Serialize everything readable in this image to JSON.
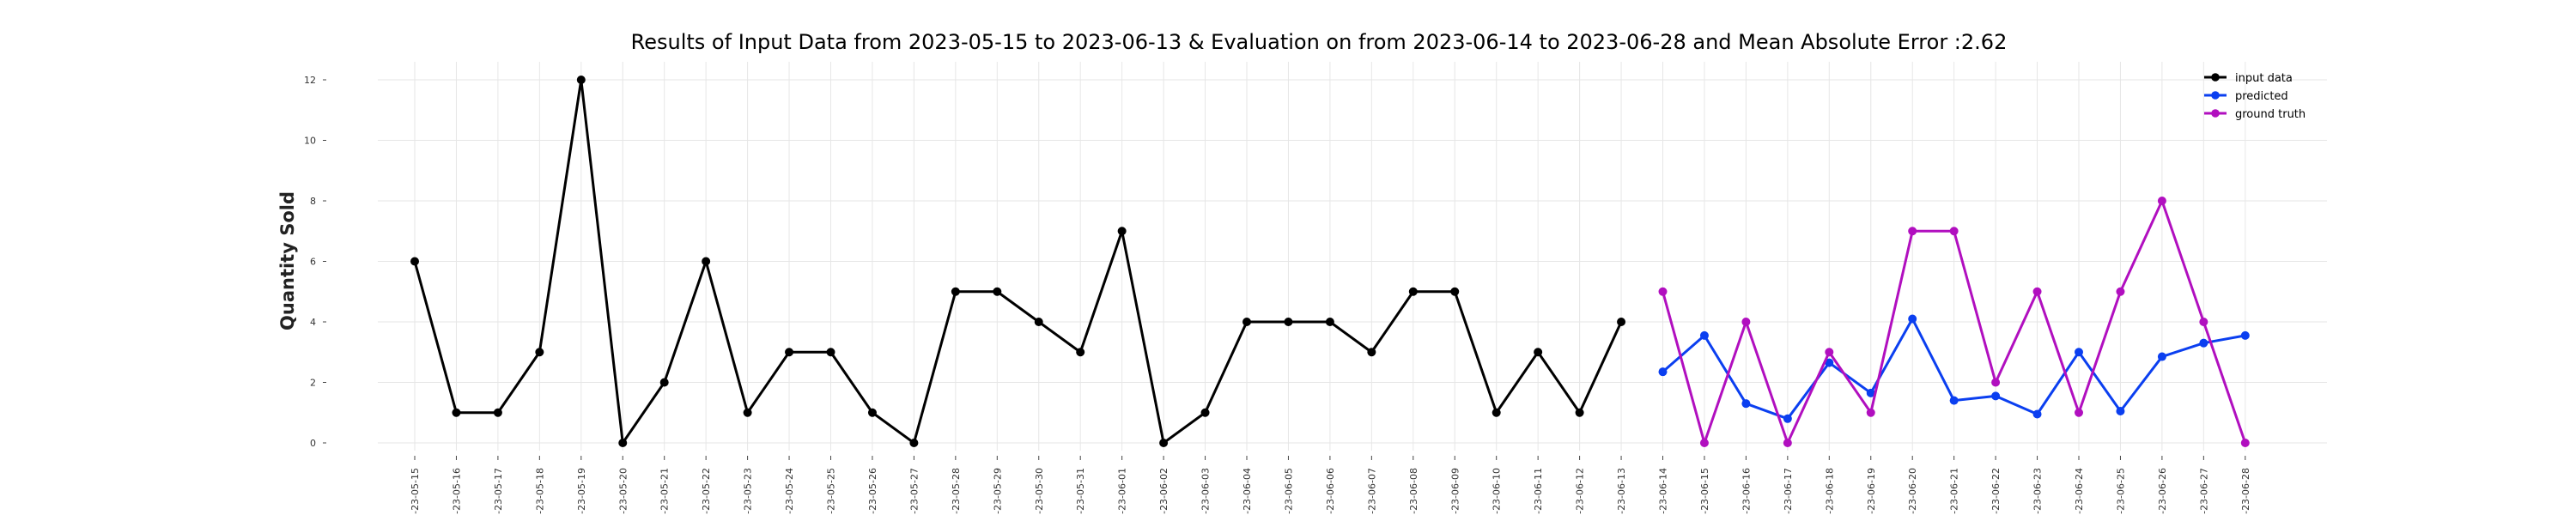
{
  "chart_data": {
    "type": "line",
    "title": "Results of Input Data from 2023-05-15 to 2023-06-13 & Evaluation on from 2023-06-14 to 2023-06-28 and Mean Absolute Error  :2.62",
    "xlabel": "",
    "ylabel": "Quantity Sold",
    "ylim": [
      0,
      12.5
    ],
    "y_ticks": [
      0,
      2,
      4,
      6,
      8,
      10,
      12
    ],
    "grid": true,
    "legend_position": "top-right",
    "x_tick_labels": [
      "-23-05-15",
      "-23-05-16",
      "-23-05-17",
      "-23-05-18",
      "-23-05-19",
      "-23-05-20",
      "-23-05-21",
      "-23-05-22",
      "-23-05-23",
      "-23-05-24",
      "-23-05-25",
      "-23-05-26",
      "-23-05-27",
      "-23-05-28",
      "-23-05-29",
      "-23-05-30",
      "-23-05-31",
      "-23-06-01",
      "-23-06-02",
      "-23-06-03",
      "-23-06-04",
      "-23-06-05",
      "-23-06-06",
      "-23-06-07",
      "-23-06-08",
      "-23-06-09",
      "-23-06-10",
      "-23-06-11",
      "-23-06-12",
      "-23-06-13",
      "-23-06-14",
      "-23-06-15",
      "-23-06-16",
      "-23-06-17",
      "-23-06-18",
      "-23-06-19",
      "-23-06-20",
      "-23-06-21",
      "-23-06-22",
      "-23-06-23",
      "-23-06-24",
      "-23-06-25",
      "-23-06-26",
      "-23-06-27",
      "-23-06-28"
    ],
    "series": [
      {
        "name": "input data",
        "color": "#000000",
        "x": [
          "2023-05-15",
          "2023-05-16",
          "2023-05-17",
          "2023-05-18",
          "2023-05-19",
          "2023-05-20",
          "2023-05-21",
          "2023-05-22",
          "2023-05-23",
          "2023-05-24",
          "2023-05-25",
          "2023-05-26",
          "2023-05-27",
          "2023-05-28",
          "2023-05-29",
          "2023-05-30",
          "2023-05-31",
          "2023-06-01",
          "2023-06-02",
          "2023-06-03",
          "2023-06-04",
          "2023-06-05",
          "2023-06-06",
          "2023-06-07",
          "2023-06-08",
          "2023-06-09",
          "2023-06-10",
          "2023-06-11",
          "2023-06-12",
          "2023-06-13"
        ],
        "values": [
          6,
          1,
          1,
          3,
          12,
          0,
          2,
          6,
          1,
          3,
          3,
          1,
          0,
          5,
          5,
          4,
          3,
          7,
          0,
          1,
          4,
          4,
          4,
          3,
          5,
          5,
          1,
          3,
          1,
          4
        ]
      },
      {
        "name": "predicted",
        "color": "#0b3ff0",
        "x": [
          "2023-06-14",
          "2023-06-15",
          "2023-06-16",
          "2023-06-17",
          "2023-06-18",
          "2023-06-19",
          "2023-06-20",
          "2023-06-21",
          "2023-06-22",
          "2023-06-23",
          "2023-06-24",
          "2023-06-25",
          "2023-06-26",
          "2023-06-27",
          "2023-06-28"
        ],
        "values": [
          2.35,
          3.55,
          1.3,
          0.8,
          2.65,
          1.65,
          4.1,
          1.4,
          1.55,
          0.95,
          3.0,
          1.05,
          2.85,
          3.3,
          3.55
        ]
      },
      {
        "name": "ground truth",
        "color": "#b10fbf",
        "x": [
          "2023-06-14",
          "2023-06-15",
          "2023-06-16",
          "2023-06-17",
          "2023-06-18",
          "2023-06-19",
          "2023-06-20",
          "2023-06-21",
          "2023-06-22",
          "2023-06-23",
          "2023-06-24",
          "2023-06-25",
          "2023-06-26",
          "2023-06-27",
          "2023-06-28"
        ],
        "values": [
          5,
          0,
          4,
          0,
          3,
          1,
          7,
          7,
          2,
          5,
          1,
          5,
          8,
          4,
          0
        ]
      }
    ]
  }
}
